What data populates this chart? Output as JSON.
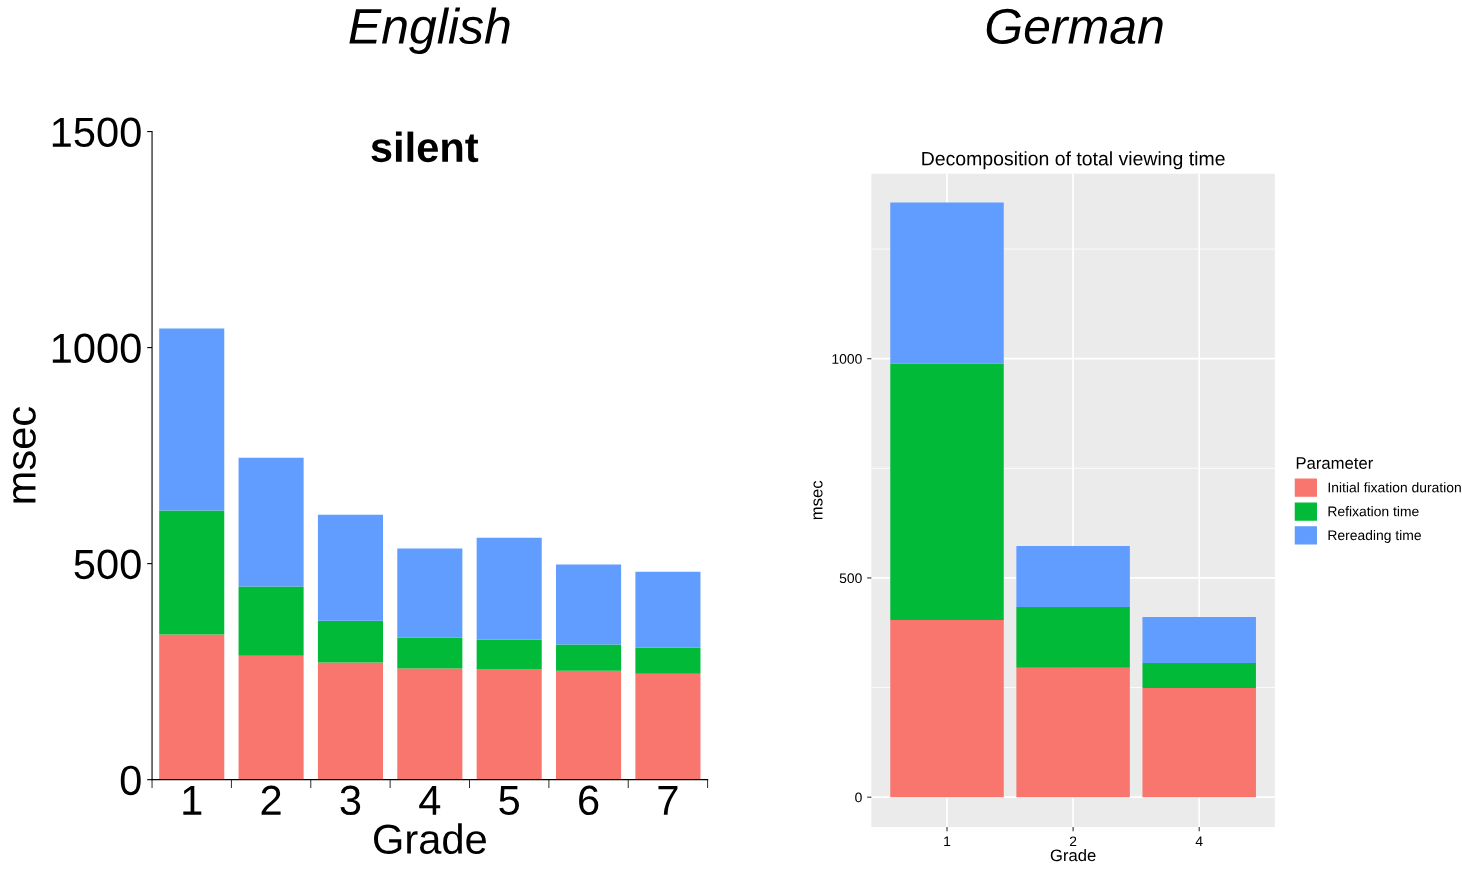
{
  "chart_data": [
    {
      "type": "bar",
      "stacked": true,
      "title": "English",
      "subtitle": "silent",
      "xlabel": "Grade",
      "ylabel": "msec",
      "categories": [
        "1",
        "2",
        "3",
        "4",
        "5",
        "6",
        "7"
      ],
      "series": [
        {
          "color": "#f8766d",
          "values": [
            336,
            287,
            271,
            257,
            255,
            252,
            245
          ]
        },
        {
          "color": "#00ba38",
          "values": [
            287,
            160,
            97,
            72,
            69,
            61,
            61
          ]
        },
        {
          "color": "#619cff",
          "values": [
            421,
            298,
            245,
            206,
            236,
            185,
            175
          ]
        }
      ],
      "ylim": [
        0,
        1500
      ],
      "yticks": [
        0,
        500,
        1000,
        1500
      ],
      "grid": false,
      "legend": false
    },
    {
      "type": "bar",
      "stacked": true,
      "title": "German",
      "subtitle": "Decomposition of total viewing time",
      "xlabel": "Grade",
      "ylabel": "msec",
      "legend_title": "Parameter",
      "categories": [
        "1",
        "2",
        "4"
      ],
      "series": [
        {
          "name": "Initial fixation duration",
          "color": "#f8766d",
          "values": [
            404,
            295,
            249
          ]
        },
        {
          "name": "Refixation time",
          "color": "#00ba38",
          "values": [
            585,
            139,
            57
          ]
        },
        {
          "name": "Rereading time",
          "color": "#619cff",
          "values": [
            367,
            139,
            105
          ]
        }
      ],
      "ylim": [
        -68,
        1422
      ],
      "yticks": [
        0,
        {
          "value": 250,
          "label": null
        },
        500,
        {
          "value": 750,
          "label": null
        },
        1000,
        {
          "value": 1250,
          "label": null
        }
      ],
      "grid": true,
      "legend": "right"
    }
  ]
}
